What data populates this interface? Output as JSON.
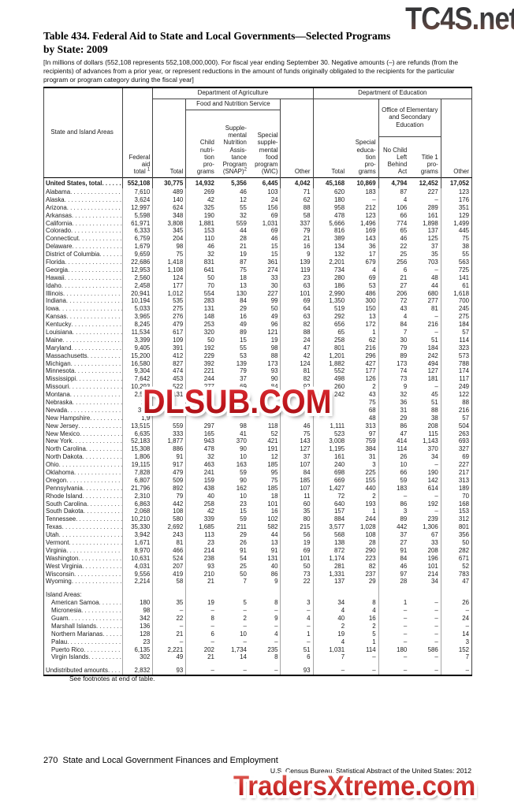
{
  "watermarks": {
    "top": "TC4S.net",
    "middle": "DLSUB.COM",
    "bottom": "TradersXtreme.com"
  },
  "title": {
    "line1": "Table 434. Federal Aid to State and Local Governments—Selected Programs",
    "line2": "by State: 2009"
  },
  "note": "[In millions of dollars (552,108 represents 552,108,000,000). For fiscal year ending September 30. Negative amounts (–) are refunds (from the recipients) of advances from a prior year, or represent reductions in the amount of funds originally obligated to the recipients for the particular program or program category during the fiscal year]",
  "table": {
    "columns": {
      "stub": "State and Island Areas",
      "federal_aid": "Federal\naid\ntotal ",
      "federal_aid_sup": "1",
      "dept_agriculture": "Department of Agriculture",
      "food_nutrition_service": "Food and Nutrition Service",
      "agri_total": "Total",
      "child_nutrition": "Child\nnutri-\ntion\npro-\ngrams",
      "snap": "Supple-\nmental\nNutrition\nAssis-\ntance\nProgram\n(SNAP)",
      "snap_sup": "2",
      "wic": "Special\nsupple-\nmental\nfood\nprogram\n(WIC)",
      "other_agri": "Other",
      "dept_education": "Department of Education",
      "ed_total": "Total",
      "special_education": "Special\neduca-\ntion\npro-\ngrams",
      "oese": "Office of Elementary and Secondary Education",
      "nclb": "No Child\nLeft\nBehind\nAct",
      "title1": "Title 1\npro-\ngrams",
      "other_ed": "Other"
    },
    "rows": [
      {
        "label": "United States, total",
        "style": "total",
        "values": [
          "552,108",
          "30,775",
          "14,932",
          "5,356",
          "6,445",
          "4,042",
          "45,168",
          "10,869",
          "4,794",
          "12,452",
          "17,052"
        ]
      },
      {
        "label": "Alabama",
        "values": [
          "7,610",
          "489",
          "269",
          "46",
          "103",
          "71",
          "620",
          "183",
          "87",
          "227",
          "123"
        ]
      },
      {
        "label": "Alaska",
        "values": [
          "3,624",
          "140",
          "42",
          "12",
          "24",
          "62",
          "180",
          "–",
          "4",
          "–",
          "176"
        ]
      },
      {
        "label": "Arizona",
        "values": [
          "12,997",
          "624",
          "325",
          "55",
          "156",
          "88",
          "958",
          "212",
          "106",
          "289",
          "351"
        ]
      },
      {
        "label": "Arkansas",
        "values": [
          "5,598",
          "348",
          "190",
          "32",
          "69",
          "58",
          "478",
          "123",
          "66",
          "161",
          "129"
        ]
      },
      {
        "label": "California",
        "values": [
          "61,971",
          "3,808",
          "1,881",
          "559",
          "1,031",
          "337",
          "5,666",
          "1,496",
          "774",
          "1,898",
          "1,499"
        ]
      },
      {
        "label": "Colorado",
        "values": [
          "6,333",
          "345",
          "153",
          "44",
          "69",
          "79",
          "816",
          "169",
          "65",
          "137",
          "445"
        ]
      },
      {
        "label": "Connecticut",
        "values": [
          "6,759",
          "204",
          "110",
          "28",
          "46",
          "21",
          "389",
          "143",
          "46",
          "125",
          "75"
        ]
      },
      {
        "label": "Delaware",
        "values": [
          "1,679",
          "98",
          "46",
          "21",
          "15",
          "16",
          "134",
          "36",
          "22",
          "37",
          "38"
        ]
      },
      {
        "label": "District of Columbia",
        "values": [
          "9,659",
          "75",
          "32",
          "19",
          "15",
          "9",
          "132",
          "17",
          "25",
          "35",
          "55"
        ]
      },
      {
        "label": "Florida",
        "values": [
          "22,686",
          "1,418",
          "831",
          "87",
          "361",
          "139",
          "2,201",
          "679",
          "256",
          "703",
          "563"
        ]
      },
      {
        "label": "Georgia",
        "values": [
          "12,953",
          "1,108",
          "641",
          "75",
          "274",
          "119",
          "734",
          "4",
          "6",
          "–",
          "725"
        ]
      },
      {
        "label": "Hawaii",
        "values": [
          "2,560",
          "124",
          "50",
          "18",
          "33",
          "23",
          "280",
          "69",
          "21",
          "48",
          "141"
        ]
      },
      {
        "label": "Idaho",
        "values": [
          "2,458",
          "177",
          "70",
          "13",
          "30",
          "63",
          "186",
          "53",
          "27",
          "44",
          "61"
        ]
      },
      {
        "label": "Illinois",
        "values": [
          "20,941",
          "1,012",
          "554",
          "130",
          "227",
          "101",
          "2,990",
          "486",
          "206",
          "680",
          "1,618"
        ]
      },
      {
        "label": "Indiana",
        "values": [
          "10,194",
          "535",
          "283",
          "84",
          "99",
          "69",
          "1,350",
          "300",
          "72",
          "277",
          "700"
        ]
      },
      {
        "label": "Iowa",
        "values": [
          "5,033",
          "275",
          "131",
          "29",
          "50",
          "64",
          "519",
          "150",
          "43",
          "81",
          "245"
        ]
      },
      {
        "label": "Kansas",
        "values": [
          "3,965",
          "276",
          "148",
          "16",
          "49",
          "63",
          "292",
          "13",
          "4",
          "–",
          "275"
        ]
      },
      {
        "label": "Kentucky",
        "values": [
          "8,245",
          "479",
          "253",
          "49",
          "96",
          "82",
          "656",
          "172",
          "84",
          "216",
          "184"
        ]
      },
      {
        "label": "Louisiana",
        "values": [
          "11,534",
          "617",
          "320",
          "89",
          "121",
          "88",
          "65",
          "1",
          "7",
          "–",
          "57"
        ]
      },
      {
        "label": "Maine",
        "values": [
          "3,399",
          "109",
          "50",
          "15",
          "19",
          "24",
          "258",
          "62",
          "30",
          "51",
          "114"
        ]
      },
      {
        "label": "Maryland",
        "values": [
          "9,405",
          "391",
          "192",
          "55",
          "98",
          "47",
          "801",
          "216",
          "79",
          "184",
          "323"
        ]
      },
      {
        "label": "Massachusetts",
        "values": [
          "15,200",
          "412",
          "229",
          "53",
          "88",
          "42",
          "1,201",
          "296",
          "89",
          "242",
          "573"
        ]
      },
      {
        "label": "Michigan",
        "values": [
          "16,580",
          "827",
          "392",
          "139",
          "173",
          "124",
          "1,882",
          "427",
          "173",
          "494",
          "788"
        ]
      },
      {
        "label": "Minnesota",
        "values": [
          "9,304",
          "474",
          "221",
          "79",
          "93",
          "81",
          "552",
          "177",
          "74",
          "127",
          "174"
        ]
      },
      {
        "label": "Mississippi",
        "values": [
          "7,642",
          "453",
          "244",
          "37",
          "90",
          "82",
          "498",
          "126",
          "73",
          "181",
          "117"
        ]
      },
      {
        "label": "Missouri",
        "values": [
          "10,293",
          "522",
          "277",
          "69",
          "84",
          "92",
          "260",
          "2",
          "9",
          "–",
          "249"
        ]
      },
      {
        "label": "Montana",
        "values": [
          "2,566",
          "131",
          "43",
          "16",
          "14",
          "58",
          "242",
          "43",
          "32",
          "45",
          "122"
        ]
      },
      {
        "label": "Nebraska",
        "values": [
          "2,8",
          "",
          "",
          "32",
          "",
          "",
          "",
          "75",
          "36",
          "51",
          "88"
        ]
      },
      {
        "label": "Nevada",
        "values": [
          "3,14",
          "",
          "",
          "",
          "",
          "",
          "",
          "68",
          "31",
          "88",
          "216"
        ]
      },
      {
        "label": "New Hampshire",
        "values": [
          "1,9",
          "",
          "",
          "",
          "",
          "",
          "",
          "48",
          "29",
          "38",
          "57"
        ]
      },
      {
        "label": "New Jersey",
        "values": [
          "13,515",
          "559",
          "297",
          "98",
          "118",
          "46",
          "1,111",
          "313",
          "86",
          "208",
          "504"
        ]
      },
      {
        "label": "New Mexico",
        "values": [
          "6,635",
          "333",
          "165",
          "41",
          "52",
          "75",
          "523",
          "97",
          "47",
          "115",
          "263"
        ]
      },
      {
        "label": "New York",
        "values": [
          "52,183",
          "1,877",
          "943",
          "370",
          "421",
          "143",
          "3,008",
          "759",
          "414",
          "1,143",
          "693"
        ]
      },
      {
        "label": "North Carolina",
        "values": [
          "15,308",
          "886",
          "478",
          "90",
          "191",
          "127",
          "1,195",
          "384",
          "114",
          "370",
          "327"
        ]
      },
      {
        "label": "North Dakota",
        "values": [
          "1,806",
          "91",
          "32",
          "10",
          "12",
          "37",
          "161",
          "31",
          "26",
          "34",
          "69"
        ]
      },
      {
        "label": "Ohio",
        "values": [
          "19,115",
          "917",
          "463",
          "163",
          "185",
          "107",
          "240",
          "3",
          "10",
          "–",
          "227"
        ]
      },
      {
        "label": "Oklahoma",
        "values": [
          "7,828",
          "479",
          "241",
          "59",
          "95",
          "84",
          "698",
          "225",
          "66",
          "190",
          "217"
        ]
      },
      {
        "label": "Oregon",
        "values": [
          "6,807",
          "509",
          "159",
          "90",
          "75",
          "185",
          "669",
          "155",
          "59",
          "142",
          "313"
        ]
      },
      {
        "label": "Pennsylvania",
        "values": [
          "21,796",
          "892",
          "438",
          "162",
          "185",
          "107",
          "1,427",
          "440",
          "183",
          "614",
          "189"
        ]
      },
      {
        "label": "Rhode Island",
        "values": [
          "2,310",
          "79",
          "40",
          "10",
          "18",
          "11",
          "72",
          "2",
          "–",
          "–",
          "70"
        ]
      },
      {
        "label": "South Carolina",
        "values": [
          "6,863",
          "442",
          "258",
          "23",
          "101",
          "60",
          "640",
          "193",
          "86",
          "192",
          "168"
        ]
      },
      {
        "label": "South Dakota",
        "values": [
          "2,068",
          "108",
          "42",
          "15",
          "16",
          "35",
          "157",
          "1",
          "3",
          "–",
          "153"
        ]
      },
      {
        "label": "Tennessee",
        "values": [
          "10,210",
          "580",
          "339",
          "59",
          "102",
          "80",
          "884",
          "244",
          "89",
          "239",
          "312"
        ]
      },
      {
        "label": "Texas",
        "values": [
          "35,330",
          "2,692",
          "1,685",
          "211",
          "582",
          "215",
          "3,577",
          "1,028",
          "442",
          "1,306",
          "801"
        ]
      },
      {
        "label": "Utah",
        "values": [
          "3,942",
          "243",
          "113",
          "29",
          "44",
          "56",
          "568",
          "108",
          "37",
          "67",
          "356"
        ]
      },
      {
        "label": "Vermont",
        "values": [
          "1,671",
          "81",
          "23",
          "26",
          "13",
          "19",
          "138",
          "28",
          "27",
          "33",
          "50"
        ]
      },
      {
        "label": "Virginia",
        "values": [
          "8,970",
          "466",
          "214",
          "91",
          "91",
          "69",
          "872",
          "290",
          "91",
          "208",
          "282"
        ]
      },
      {
        "label": "Washington",
        "values": [
          "10,631",
          "524",
          "238",
          "54",
          "131",
          "101",
          "1,174",
          "223",
          "84",
          "196",
          "671"
        ]
      },
      {
        "label": "West Virginia",
        "values": [
          "4,031",
          "207",
          "93",
          "25",
          "40",
          "50",
          "281",
          "82",
          "46",
          "101",
          "52"
        ]
      },
      {
        "label": "Wisconsin",
        "values": [
          "9,556",
          "419",
          "210",
          "50",
          "86",
          "73",
          "1,331",
          "237",
          "97",
          "214",
          "783"
        ]
      },
      {
        "label": "Wyoming",
        "values": [
          "2,214",
          "58",
          "21",
          "7",
          "9",
          "22",
          "137",
          "29",
          "28",
          "34",
          "47"
        ]
      },
      {
        "label": "Island Areas:",
        "style": "section",
        "gap": true,
        "values": [
          "",
          "",
          "",
          "",
          "",
          "",
          "",
          "",
          "",
          "",
          ""
        ]
      },
      {
        "label": "American Samoa",
        "style": "indent",
        "values": [
          "180",
          "35",
          "19",
          "5",
          "8",
          "3",
          "34",
          "8",
          "1",
          "–",
          "26"
        ]
      },
      {
        "label": "Micronesia",
        "style": "indent",
        "values": [
          "98",
          "–",
          "–",
          "–",
          "–",
          "–",
          "4",
          "4",
          "–",
          "–",
          "–"
        ]
      },
      {
        "label": "Guam",
        "style": "indent",
        "values": [
          "342",
          "22",
          "8",
          "2",
          "9",
          "4",
          "40",
          "16",
          "–",
          "–",
          "24"
        ]
      },
      {
        "label": "Marshall Islands",
        "style": "indent",
        "values": [
          "136",
          "–",
          "–",
          "–",
          "–",
          "–",
          "2",
          "2",
          "–",
          "–",
          "–"
        ]
      },
      {
        "label": "Northern Marianas",
        "style": "indent",
        "values": [
          "128",
          "21",
          "6",
          "10",
          "4",
          "1",
          "19",
          "5",
          "–",
          "–",
          "14"
        ]
      },
      {
        "label": "Palau",
        "style": "indent",
        "values": [
          "23",
          "–",
          "–",
          "–",
          "–",
          "–",
          "4",
          "1",
          "–",
          "–",
          "3"
        ]
      },
      {
        "label": "Puerto Rico",
        "style": "indent",
        "values": [
          "6,135",
          "2,221",
          "202",
          "1,734",
          "235",
          "51",
          "1,031",
          "114",
          "180",
          "586",
          "152"
        ]
      },
      {
        "label": "Virgin Islands",
        "style": "indent",
        "values": [
          "302",
          "49",
          "21",
          "14",
          "8",
          "6",
          "7",
          "–",
          "–",
          "–",
          "7"
        ]
      },
      {
        "label": "Undistributed amounts",
        "gap": true,
        "values": [
          "2,832",
          "93",
          "–",
          "–",
          "–",
          "93",
          "–",
          "–",
          "–",
          "–",
          "–"
        ]
      }
    ]
  },
  "footnote": "See footnotes at end of table.",
  "footer": {
    "page_number": "270",
    "section": "State and Local Government Finances and Employment",
    "source": "U.S. Census Bureau, Statistical Abstract of the United States: 2012"
  },
  "colors": {
    "watermark_red": "#c0161c",
    "text": "#1a1a1a"
  }
}
